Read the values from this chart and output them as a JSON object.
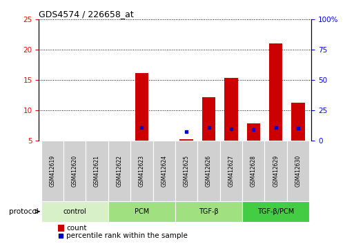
{
  "title": "GDS4574 / 226658_at",
  "samples": [
    "GSM412619",
    "GSM412620",
    "GSM412621",
    "GSM412622",
    "GSM412623",
    "GSM412624",
    "GSM412625",
    "GSM412626",
    "GSM412627",
    "GSM412628",
    "GSM412629",
    "GSM412630"
  ],
  "count_values": [
    5,
    5,
    5,
    5,
    16.2,
    5,
    5.2,
    12.2,
    15.3,
    7.8,
    21,
    11.3
  ],
  "percentile_values": [
    null,
    null,
    null,
    null,
    11,
    null,
    7.5,
    11,
    9.5,
    8.8,
    10.8,
    10
  ],
  "ylim_left": [
    5,
    25
  ],
  "ylim_right": [
    0,
    100
  ],
  "yticks_left": [
    5,
    10,
    15,
    20,
    25
  ],
  "yticks_right": [
    0,
    25,
    50,
    75,
    100
  ],
  "ytick_labels_right": [
    "0",
    "25",
    "50",
    "75",
    "100%"
  ],
  "bar_color": "#cc0000",
  "dot_color": "#0000cc",
  "protocol_groups": [
    {
      "label": "control",
      "start": 0,
      "end": 2,
      "color": "#d8f0c8"
    },
    {
      "label": "PCM",
      "start": 3,
      "end": 5,
      "color": "#a0e080"
    },
    {
      "label": "TGF-β",
      "start": 6,
      "end": 8,
      "color": "#a0e080"
    },
    {
      "label": "TGF-β/PCM",
      "start": 9,
      "end": 11,
      "color": "#44cc44"
    }
  ],
  "legend_count_label": "count",
  "legend_pct_label": "percentile rank within the sample",
  "xlabel_protocol": "protocol",
  "sample_box_color": "#d0d0d0",
  "bg_color": "#ffffff"
}
